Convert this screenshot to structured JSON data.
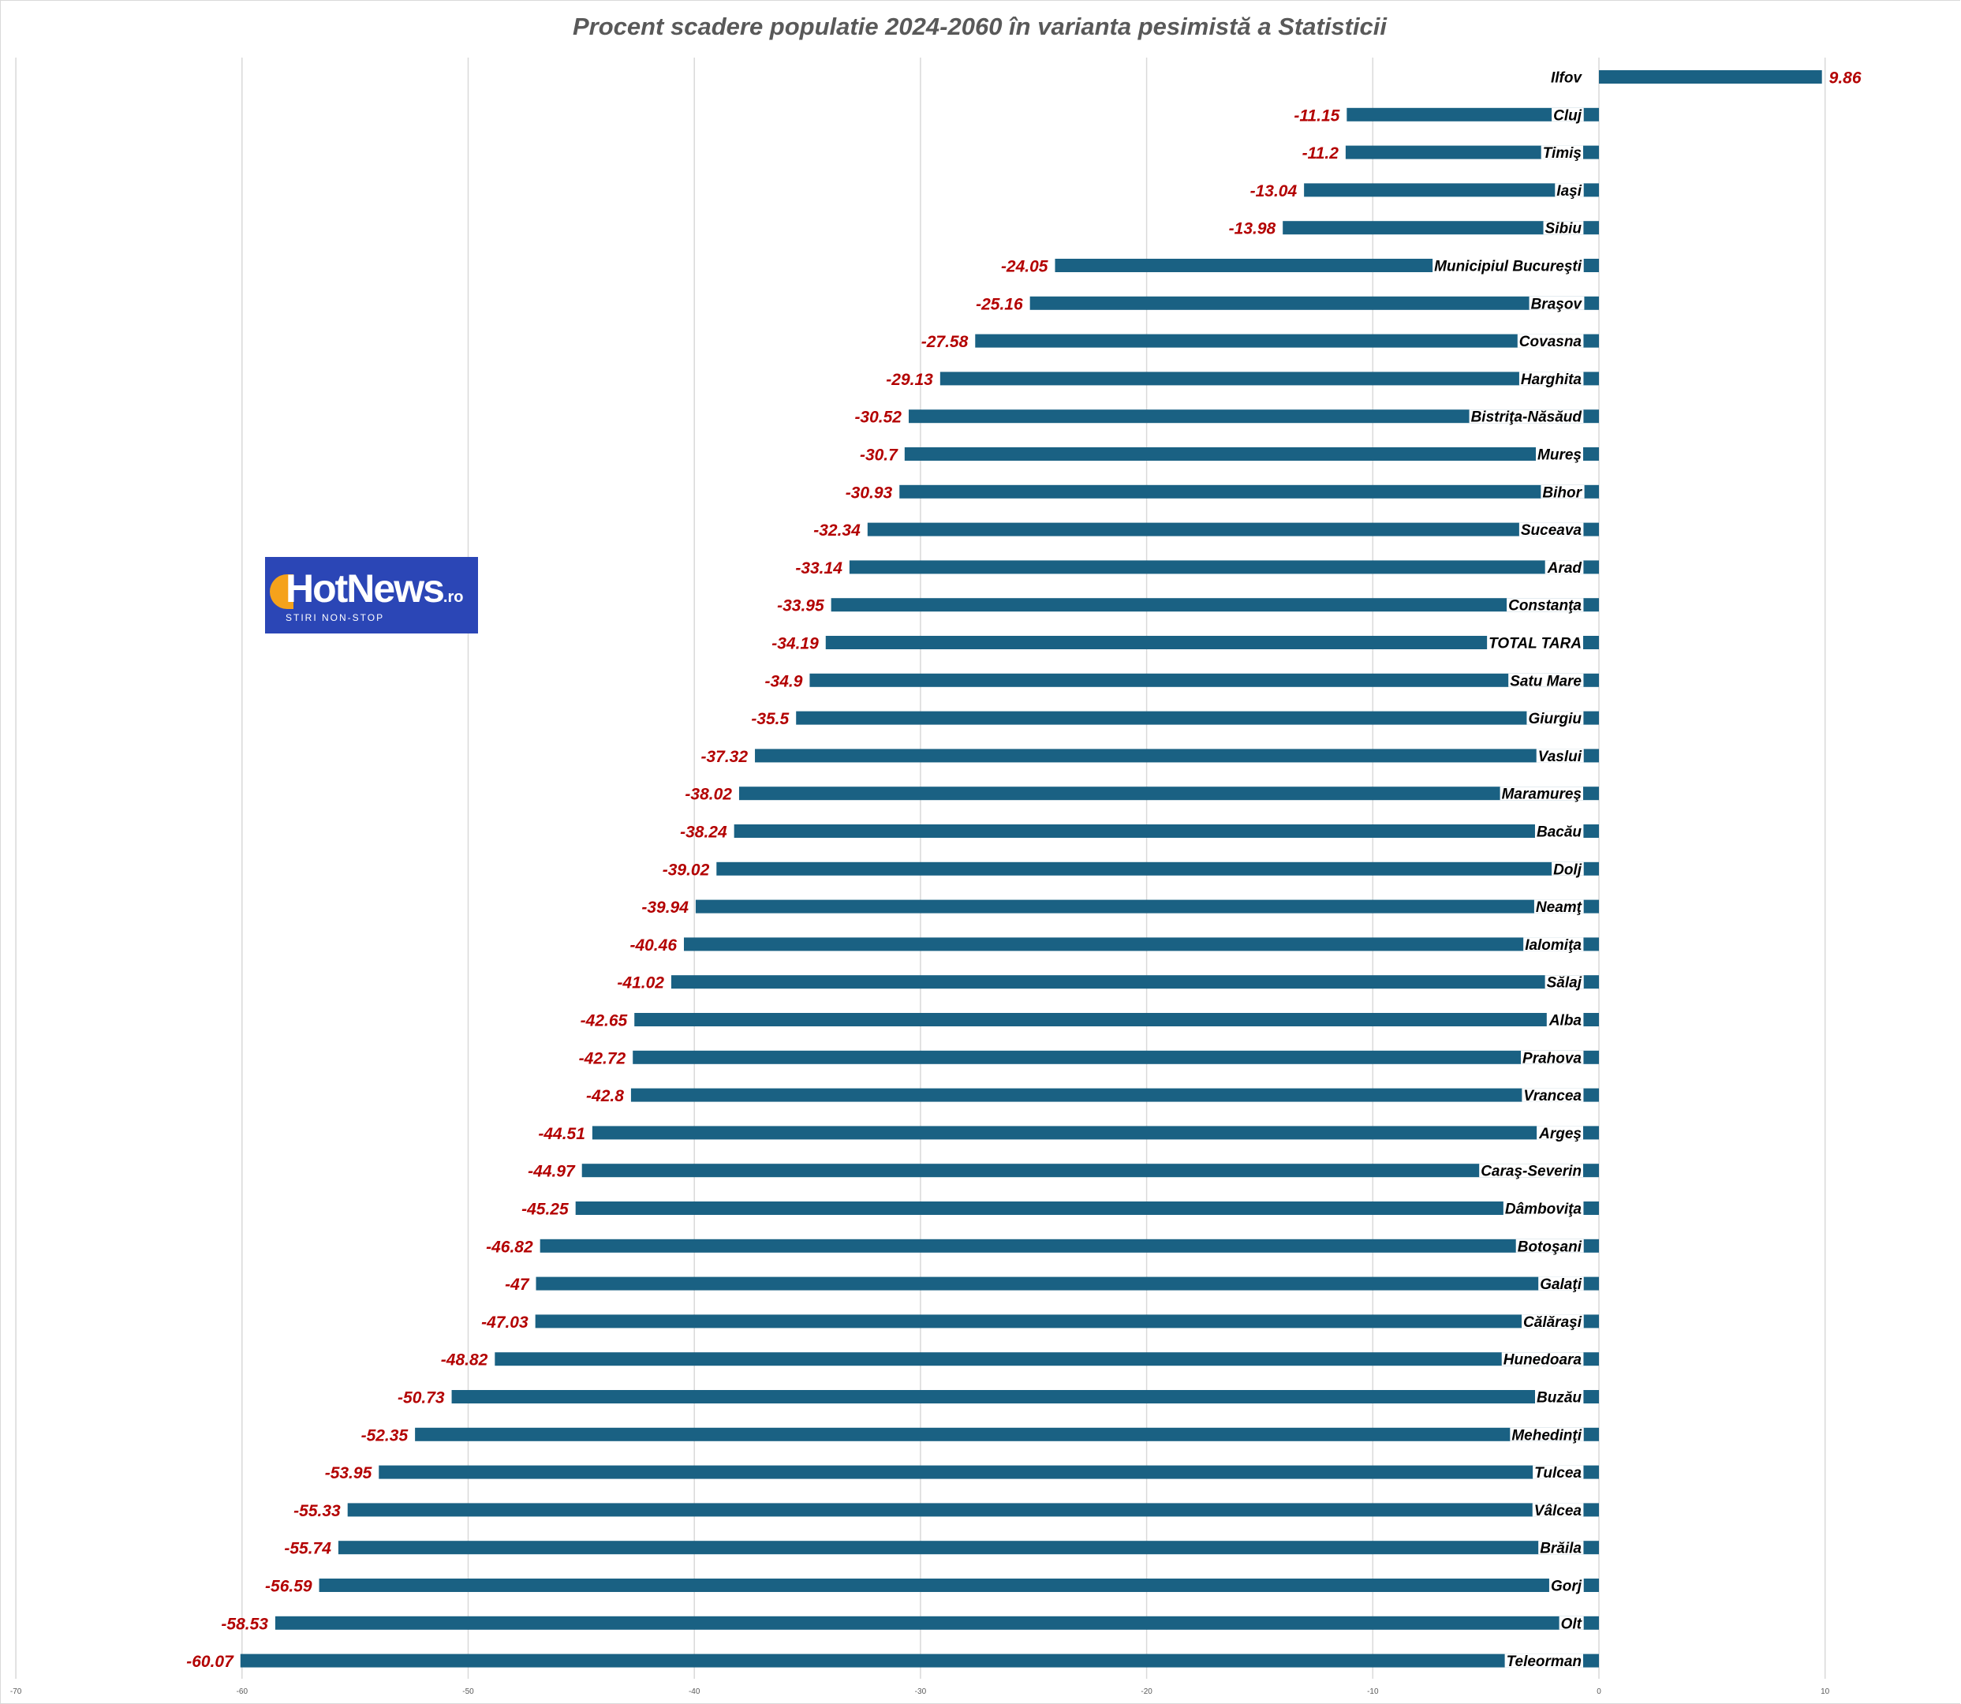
{
  "chart_data": {
    "type": "bar",
    "orientation": "horizontal",
    "title": "Procent scadere populatie 2024-2060 în varianta pesimistă a Statisticii",
    "xlabel": "",
    "ylabel": "",
    "xlim": [
      -70,
      10
    ],
    "xticks": [
      -70,
      -60,
      -50,
      -40,
      -30,
      -20,
      -10,
      0,
      10
    ],
    "xtick_labels": [
      "-70",
      "-60",
      "-50",
      "-40",
      "-30",
      "-20",
      "-10",
      "0",
      "10"
    ],
    "grid": true,
    "legend": "none",
    "categories": [
      "Ilfov",
      "Cluj",
      "Timiş",
      "Iaşi",
      "Sibiu",
      "Municipiul Bucureşti",
      "Braşov",
      "Covasna",
      "Harghita",
      "Bistriţa-Năsăud",
      "Mureş",
      "Bihor",
      "Suceava",
      "Arad",
      "Constanţa",
      "TOTAL TARA",
      "Satu Mare",
      "Giurgiu",
      "Vaslui",
      "Maramureş",
      "Bacău",
      "Dolj",
      "Neamţ",
      "Ialomiţa",
      "Sălaj",
      "Alba",
      "Prahova",
      "Vrancea",
      "Argeş",
      "Caraş-Severin",
      "Dâmboviţa",
      "Botoşani",
      "Galaţi",
      "Călăraşi",
      "Hunedoara",
      "Buzău",
      "Mehedinţi",
      "Tulcea",
      "Vâlcea",
      "Brăila",
      "Gorj",
      "Olt",
      "Teleorman"
    ],
    "values": [
      9.86,
      -11.15,
      -11.2,
      -13.04,
      -13.98,
      -24.05,
      -25.16,
      -27.58,
      -29.13,
      -30.52,
      -30.7,
      -30.93,
      -32.34,
      -33.14,
      -33.95,
      -34.19,
      -34.9,
      -35.5,
      -37.32,
      -38.02,
      -38.24,
      -39.02,
      -39.94,
      -40.46,
      -41.02,
      -42.65,
      -42.72,
      -42.8,
      -44.51,
      -44.97,
      -45.25,
      -46.82,
      -47,
      -47.03,
      -48.82,
      -50.73,
      -52.35,
      -53.95,
      -55.33,
      -55.74,
      -56.59,
      -58.53,
      -60.07
    ],
    "value_labels": [
      "9.86",
      "-11.15",
      "-11.2",
      "-13.04",
      "-13.98",
      "-24.05",
      "-25.16",
      "-27.58",
      "-29.13",
      "-30.52",
      "-30.7",
      "-30.93",
      "-32.34",
      "-33.14",
      "-33.95",
      "-34.19",
      "-34.9",
      "-35.5",
      "-37.32",
      "-38.02",
      "-38.24",
      "-39.02",
      "-39.94",
      "-40.46",
      "-41.02",
      "-42.65",
      "-42.72",
      "-42.8",
      "-44.51",
      "-44.97",
      "-45.25",
      "-46.82",
      "-47",
      "-47.03",
      "-48.82",
      "-50.73",
      "-52.35",
      "-53.95",
      "-55.33",
      "-55.74",
      "-56.59",
      "-58.53",
      "-60.07"
    ],
    "colors": {
      "bar": "#1a6183",
      "value_label": "#b30000",
      "grid": "#d9d9d9",
      "title": "#595959"
    }
  },
  "logo": {
    "brand": "HotNews",
    "suffix": ".ro",
    "tagline": "STIRI NON-STOP",
    "colors": {
      "background": "#2b46b6",
      "sun": "#f5a21b",
      "text": "#ffffff"
    }
  }
}
